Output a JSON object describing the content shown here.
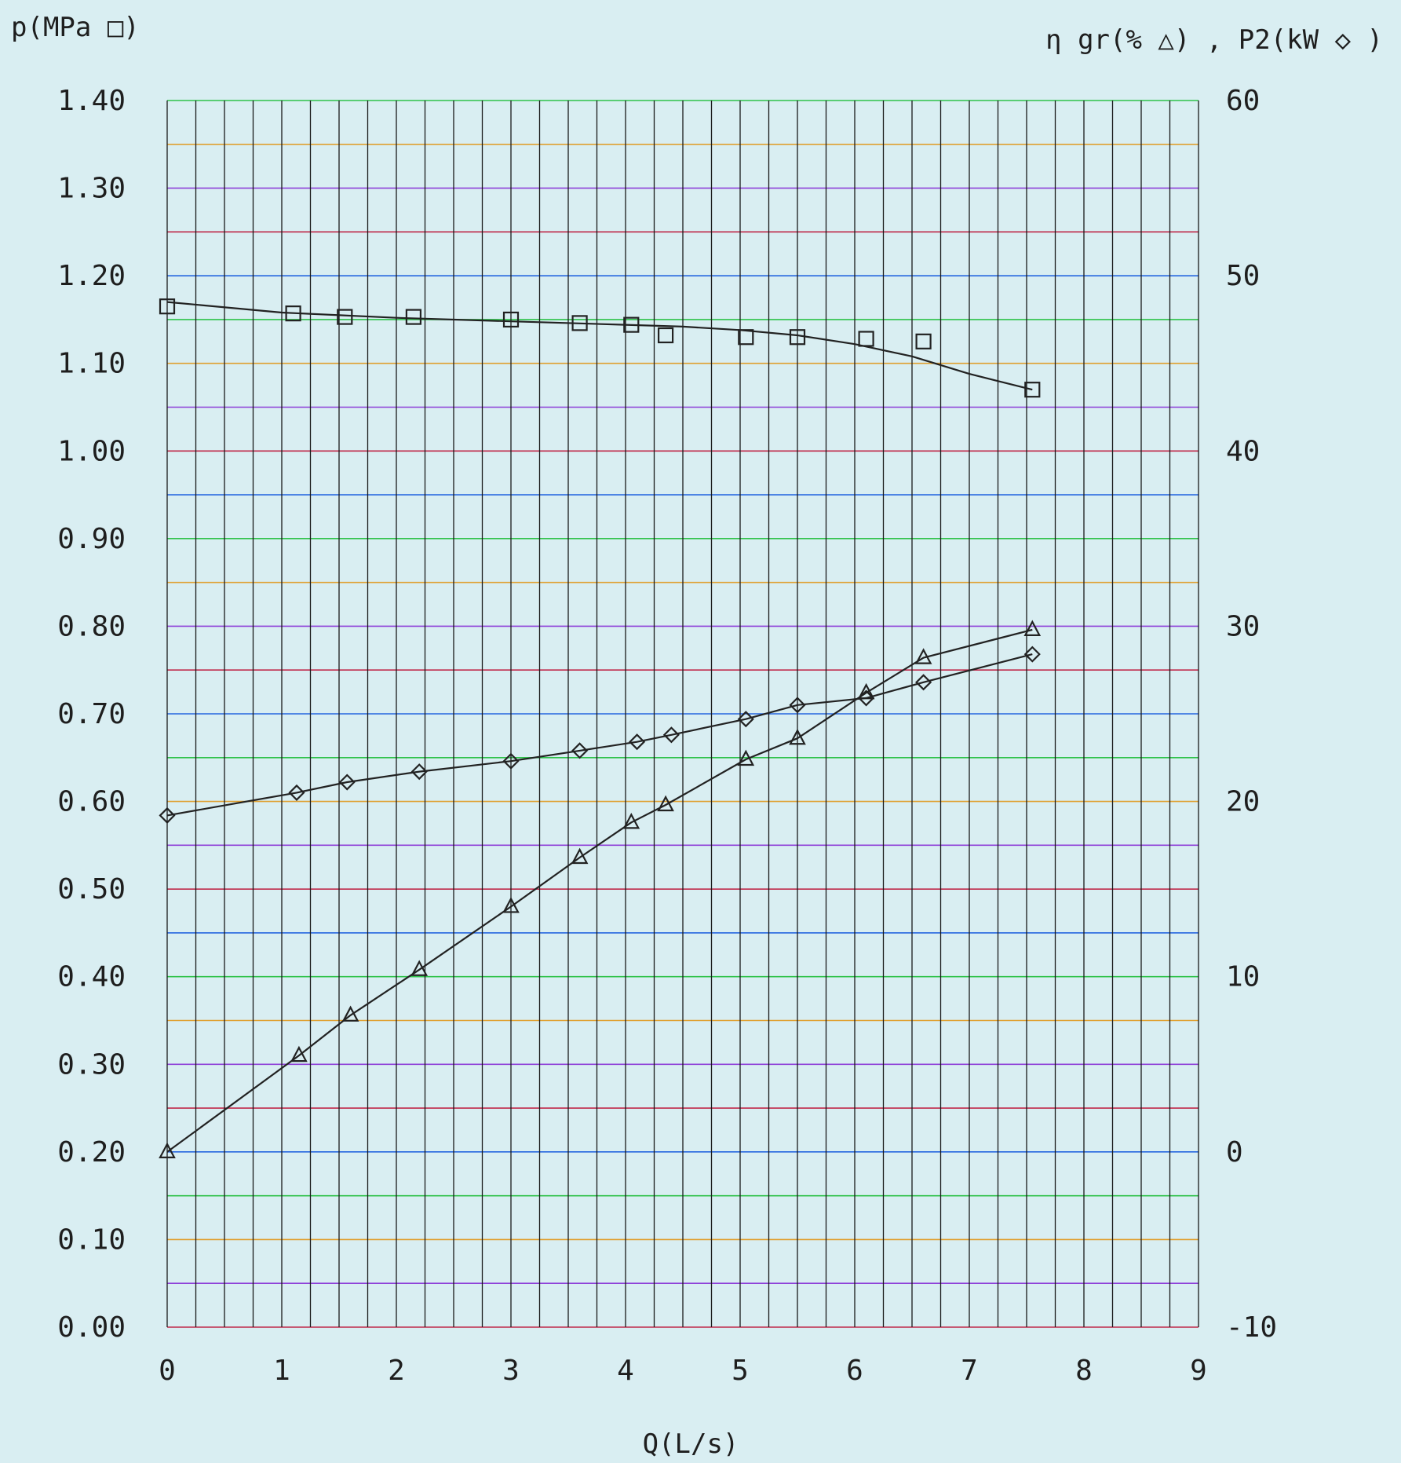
{
  "chart_data": {
    "type": "line",
    "xlabel": "Q(L/s)",
    "ylabel_left": "p(MPa □)",
    "ylabel_right": "η gr(% △) , P2(kW ◇ )",
    "x_ticks": [
      "0",
      "1",
      "2",
      "3",
      "4",
      "5",
      "6",
      "7",
      "8",
      "9"
    ],
    "y_left_ticks": [
      "0.00",
      "0.10",
      "0.20",
      "0.30",
      "0.40",
      "0.50",
      "0.60",
      "0.70",
      "0.80",
      "0.90",
      "1.00",
      "1.10",
      "1.20",
      "1.30",
      "1.40"
    ],
    "y_right_ticks": [
      "-10",
      "0",
      "10",
      "20",
      "30",
      "40",
      "50",
      "60"
    ],
    "xlim": [
      0,
      9
    ],
    "ylim_left": [
      0,
      1.4
    ],
    "ylim_right": [
      -10,
      60
    ],
    "grid": true,
    "series": [
      {
        "name": "p",
        "axis": "left",
        "marker": "square",
        "x": [
          0,
          1.1,
          1.55,
          2.15,
          3.0,
          3.6,
          4.05,
          4.35,
          5.05,
          5.5,
          6.1,
          6.6,
          7.55
        ],
        "values": [
          1.165,
          1.157,
          1.153,
          1.153,
          1.15,
          1.146,
          1.144,
          1.132,
          1.13,
          1.13,
          1.128,
          1.125,
          1.07
        ],
        "curve_x": [
          0,
          1,
          2,
          3,
          4,
          4.5,
          5,
          5.5,
          6,
          6.5,
          7,
          7.55
        ],
        "curve_y": [
          1.17,
          1.158,
          1.152,
          1.148,
          1.144,
          1.142,
          1.138,
          1.132,
          1.122,
          1.108,
          1.088,
          1.07
        ]
      },
      {
        "name": "ηgr",
        "axis": "right",
        "marker": "triangle",
        "x": [
          0,
          1.15,
          1.6,
          2.2,
          3.0,
          3.6,
          4.05,
          4.35,
          5.05,
          5.5,
          6.1,
          6.6,
          7.55
        ],
        "values": [
          0,
          5.5,
          7.8,
          10.4,
          14,
          16.8,
          18.8,
          19.8,
          22.4,
          23.6,
          26.2,
          28.2,
          29.8
        ]
      },
      {
        "name": "P2",
        "axis": "right",
        "marker": "diamond",
        "x": [
          0,
          1.13,
          1.57,
          2.2,
          3.0,
          3.6,
          4.1,
          4.4,
          5.05,
          5.5,
          6.1,
          6.6,
          7.55
        ],
        "values": [
          19.2,
          20.5,
          21.1,
          21.7,
          22.3,
          22.9,
          23.4,
          23.8,
          24.7,
          25.5,
          25.9,
          26.8,
          28.4
        ]
      }
    ]
  },
  "colors": {
    "background": "#d9eef2",
    "vertical_grid": "#1a1a1a",
    "horizontal_grid_cycle": [
      "#c0294a",
      "#8e3fd8",
      "#e0a030",
      "#2fc24a",
      "#2566e0"
    ],
    "series_line": "#222222",
    "text": "#1e1e1e"
  }
}
